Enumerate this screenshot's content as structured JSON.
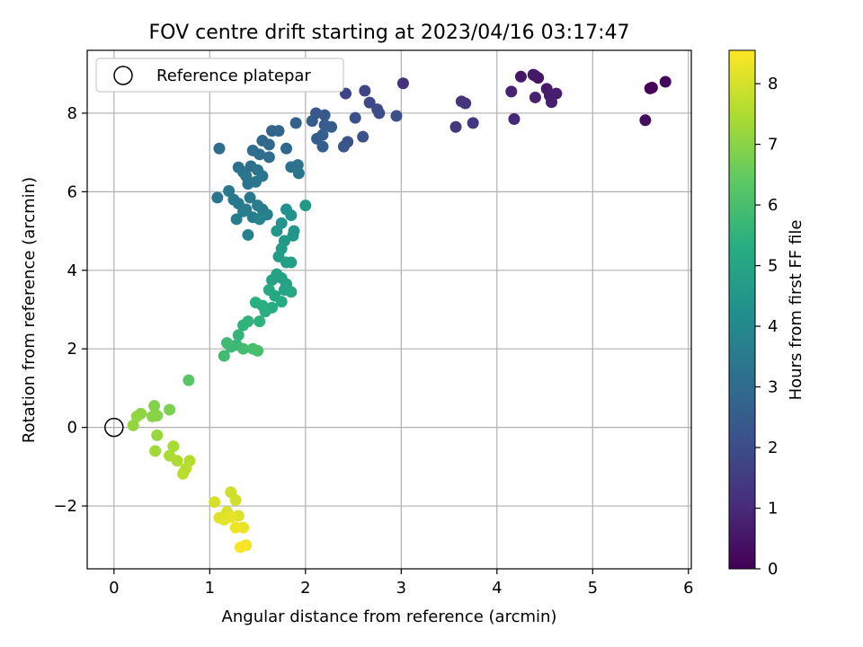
{
  "chart_data": {
    "type": "scatter",
    "title": "FOV centre drift starting at 2023/04/16 03:17:47",
    "xlabel": "Angular distance from reference (arcmin)",
    "ylabel": "Rotation from reference (arcmin)",
    "xlim": [
      -0.28,
      6.03
    ],
    "ylim": [
      -3.6,
      9.6
    ],
    "x_ticks": [
      0,
      1,
      2,
      3,
      4,
      5,
      6
    ],
    "y_ticks": [
      -2,
      0,
      2,
      4,
      6,
      8
    ],
    "grid": true,
    "colorbar": {
      "label": "Hours from first FF file",
      "range": [
        0,
        8.55
      ],
      "ticks": [
        0,
        1,
        2,
        3,
        4,
        5,
        6,
        7,
        8
      ],
      "colormap": "viridis"
    },
    "legend": {
      "position": "top-left",
      "label": "Reference platepar"
    },
    "reference_point": {
      "x": 0,
      "y": 0
    },
    "points": [
      [
        5.62,
        8.65,
        0.05
      ],
      [
        5.6,
        8.63,
        0.1
      ],
      [
        5.76,
        8.8,
        0.2
      ],
      [
        5.55,
        7.82,
        0.3
      ],
      [
        4.4,
        8.95,
        0.4
      ],
      [
        4.43,
        8.9,
        0.45
      ],
      [
        4.25,
        8.93,
        0.5
      ],
      [
        4.38,
        8.98,
        0.55
      ],
      [
        4.52,
        8.62,
        0.6
      ],
      [
        4.55,
        8.45,
        0.65
      ],
      [
        4.62,
        8.5,
        0.7
      ],
      [
        4.57,
        8.28,
        0.75
      ],
      [
        4.4,
        8.4,
        0.8
      ],
      [
        4.15,
        8.55,
        0.85
      ],
      [
        4.18,
        7.85,
        0.95
      ],
      [
        3.02,
        8.76,
        1.2
      ],
      [
        3.63,
        8.3,
        1.25
      ],
      [
        3.67,
        8.25,
        1.3
      ],
      [
        3.75,
        7.75,
        1.35
      ],
      [
        3.57,
        7.65,
        1.4
      ],
      [
        2.42,
        8.5,
        1.7
      ],
      [
        2.62,
        8.57,
        1.8
      ],
      [
        2.67,
        8.27,
        1.9
      ],
      [
        2.75,
        8.1,
        1.95
      ],
      [
        2.77,
        8.0,
        2.0
      ],
      [
        2.95,
        7.93,
        2.05
      ],
      [
        2.52,
        7.88,
        2.1
      ],
      [
        2.6,
        7.4,
        2.15
      ],
      [
        2.44,
        7.27,
        2.2
      ],
      [
        2.4,
        7.15,
        2.3
      ],
      [
        2.11,
        8.0,
        2.3
      ],
      [
        2.2,
        7.95,
        2.35
      ],
      [
        2.07,
        7.8,
        2.4
      ],
      [
        2.2,
        7.7,
        2.45
      ],
      [
        2.27,
        7.65,
        2.5
      ],
      [
        2.18,
        7.45,
        2.5
      ],
      [
        2.12,
        7.35,
        2.55
      ],
      [
        2.18,
        7.15,
        2.6
      ],
      [
        1.9,
        7.75,
        2.7
      ],
      [
        1.65,
        7.55,
        2.75
      ],
      [
        1.72,
        7.55,
        2.8
      ],
      [
        1.8,
        7.1,
        2.85
      ],
      [
        1.55,
        7.3,
        2.9
      ],
      [
        1.62,
        7.2,
        2.95
      ],
      [
        1.62,
        6.88,
        3.0
      ],
      [
        1.52,
        6.95,
        3.05
      ],
      [
        1.45,
        7.05,
        3.05
      ],
      [
        1.43,
        6.65,
        3.1
      ],
      [
        1.3,
        6.62,
        3.15
      ],
      [
        1.35,
        6.5,
        3.15
      ],
      [
        1.85,
        6.63,
        3.2
      ],
      [
        1.92,
        6.68,
        3.2
      ],
      [
        1.93,
        6.47,
        3.25
      ],
      [
        1.5,
        6.55,
        3.25
      ],
      [
        1.55,
        6.4,
        3.3
      ],
      [
        1.38,
        6.4,
        3.3
      ],
      [
        1.4,
        6.2,
        3.35
      ],
      [
        1.48,
        6.25,
        3.35
      ],
      [
        1.2,
        6.02,
        3.4
      ],
      [
        1.25,
        5.8,
        3.4
      ],
      [
        1.3,
        5.7,
        3.45
      ],
      [
        1.42,
        5.85,
        3.45
      ],
      [
        1.5,
        5.65,
        3.5
      ],
      [
        1.55,
        5.55,
        3.5
      ],
      [
        1.38,
        5.55,
        3.55
      ],
      [
        1.45,
        5.35,
        3.55
      ],
      [
        1.28,
        5.3,
        3.6
      ],
      [
        1.35,
        5.5,
        3.6
      ],
      [
        1.56,
        5.4,
        3.65
      ],
      [
        1.4,
        4.9,
        3.7
      ],
      [
        1.08,
        5.85,
        3.3
      ],
      [
        1.1,
        7.1,
        3.0
      ],
      [
        1.6,
        5.42,
        3.7
      ],
      [
        1.52,
        5.3,
        3.75
      ],
      [
        1.8,
        5.55,
        4.3
      ],
      [
        1.85,
        5.4,
        4.35
      ],
      [
        1.75,
        5.2,
        4.4
      ],
      [
        1.7,
        5.0,
        4.45
      ],
      [
        1.88,
        5.0,
        4.5
      ],
      [
        1.87,
        4.88,
        4.5
      ],
      [
        1.78,
        4.75,
        4.55
      ],
      [
        2.0,
        5.65,
        4.6
      ],
      [
        1.75,
        4.55,
        4.65
      ],
      [
        1.72,
        4.35,
        4.7
      ],
      [
        1.8,
        4.2,
        4.75
      ],
      [
        1.85,
        4.2,
        4.8
      ],
      [
        1.7,
        3.9,
        4.85
      ],
      [
        1.65,
        3.75,
        4.9
      ],
      [
        1.75,
        3.8,
        4.9
      ],
      [
        1.8,
        3.65,
        4.95
      ],
      [
        1.78,
        3.5,
        5.0
      ],
      [
        1.85,
        3.45,
        5.05
      ],
      [
        1.68,
        3.35,
        5.1
      ],
      [
        1.62,
        3.5,
        5.15
      ],
      [
        1.75,
        3.2,
        5.2
      ],
      [
        1.65,
        3.05,
        5.25
      ],
      [
        1.55,
        3.1,
        5.3
      ],
      [
        1.58,
        2.95,
        5.35
      ],
      [
        1.48,
        3.18,
        5.4
      ],
      [
        1.52,
        2.7,
        5.45
      ],
      [
        1.35,
        2.6,
        5.5
      ],
      [
        1.4,
        2.7,
        5.55
      ],
      [
        1.3,
        2.35,
        5.6
      ],
      [
        1.28,
        2.1,
        5.7
      ],
      [
        1.22,
        2.05,
        5.75
      ],
      [
        1.18,
        2.15,
        5.8
      ],
      [
        1.15,
        1.82,
        5.85
      ],
      [
        1.35,
        2.0,
        5.9
      ],
      [
        1.45,
        2.0,
        5.95
      ],
      [
        1.5,
        1.95,
        6.0
      ],
      [
        0.78,
        1.2,
        6.3
      ],
      [
        0.58,
        0.45,
        6.8
      ],
      [
        0.42,
        0.55,
        6.9
      ],
      [
        0.45,
        0.3,
        6.95
      ],
      [
        0.4,
        0.28,
        7.0
      ],
      [
        0.28,
        0.35,
        7.05
      ],
      [
        0.24,
        0.28,
        7.1
      ],
      [
        0.2,
        0.05,
        7.15
      ],
      [
        0.45,
        -0.2,
        7.2
      ],
      [
        0.43,
        -0.6,
        7.3
      ],
      [
        0.62,
        -0.48,
        7.4
      ],
      [
        0.58,
        -0.72,
        7.45
      ],
      [
        0.66,
        -0.85,
        7.5
      ],
      [
        0.79,
        -0.85,
        7.55
      ],
      [
        0.75,
        -1.05,
        7.6
      ],
      [
        0.72,
        -1.18,
        7.65
      ],
      [
        1.22,
        -1.65,
        7.9
      ],
      [
        1.27,
        -1.85,
        7.95
      ],
      [
        1.05,
        -1.9,
        8.0
      ],
      [
        1.18,
        -2.15,
        8.05
      ],
      [
        1.3,
        -2.25,
        8.1
      ],
      [
        1.1,
        -2.3,
        8.15
      ],
      [
        1.15,
        -2.35,
        8.2
      ],
      [
        1.22,
        -2.28,
        8.25
      ],
      [
        1.35,
        -2.55,
        8.3
      ],
      [
        1.27,
        -2.55,
        8.35
      ],
      [
        1.38,
        -3.0,
        8.4
      ],
      [
        1.32,
        -3.05,
        8.45
      ]
    ]
  }
}
